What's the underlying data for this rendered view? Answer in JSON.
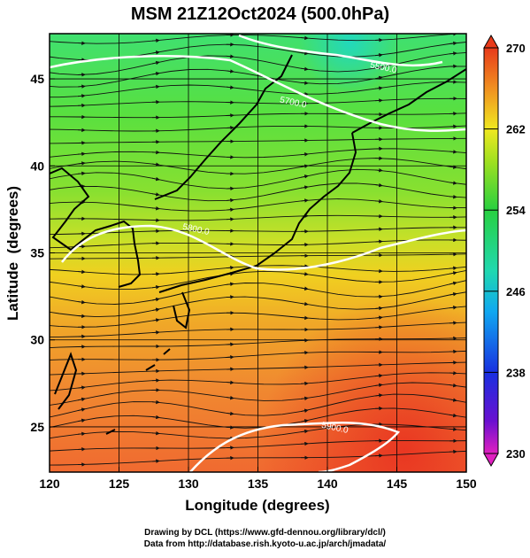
{
  "title": "MSM 21Z12Oct2024 (500.0hPa)",
  "chart_data": {
    "type": "heatmap",
    "title": "MSM 21Z12Oct2024 (500.0hPa)",
    "xlabel": "Longitude (degrees)",
    "ylabel": "Latitude  (degrees)",
    "xlim": [
      120,
      150
    ],
    "ylim": [
      22.4,
      47.6
    ],
    "x_ticks": [
      "120",
      "125",
      "130",
      "135",
      "140",
      "145",
      "150"
    ],
    "y_ticks": [
      "25",
      "30",
      "35",
      "40",
      "45"
    ],
    "x_tick_values": [
      120,
      125,
      130,
      135,
      140,
      145,
      150
    ],
    "y_tick_values": [
      25,
      30,
      35,
      40,
      45
    ],
    "grid": true,
    "colorbar": {
      "min": 230,
      "max": 270,
      "tick_labels": [
        "230",
        "238",
        "246",
        "254",
        "262",
        "270"
      ],
      "tick_values": [
        230,
        238,
        246,
        254,
        262,
        270
      ]
    },
    "contour_labels": [
      {
        "text": "5500.0",
        "lon": 144,
        "lat": 45.5
      },
      {
        "text": "5700.0",
        "lon": 137.5,
        "lat": 43.5
      },
      {
        "text": "5800.0",
        "lon": 130.5,
        "lat": 36.2
      },
      {
        "text": "5900.0",
        "lon": 140.5,
        "lat": 24.8
      }
    ]
  },
  "footer": {
    "line1": "Drawing by DCL (https://www.gfd-dennou.org/library/dcl/)",
    "line2": "Data from http://database.rish.kyoto-u.ac.jp/arch/jmadata/"
  }
}
